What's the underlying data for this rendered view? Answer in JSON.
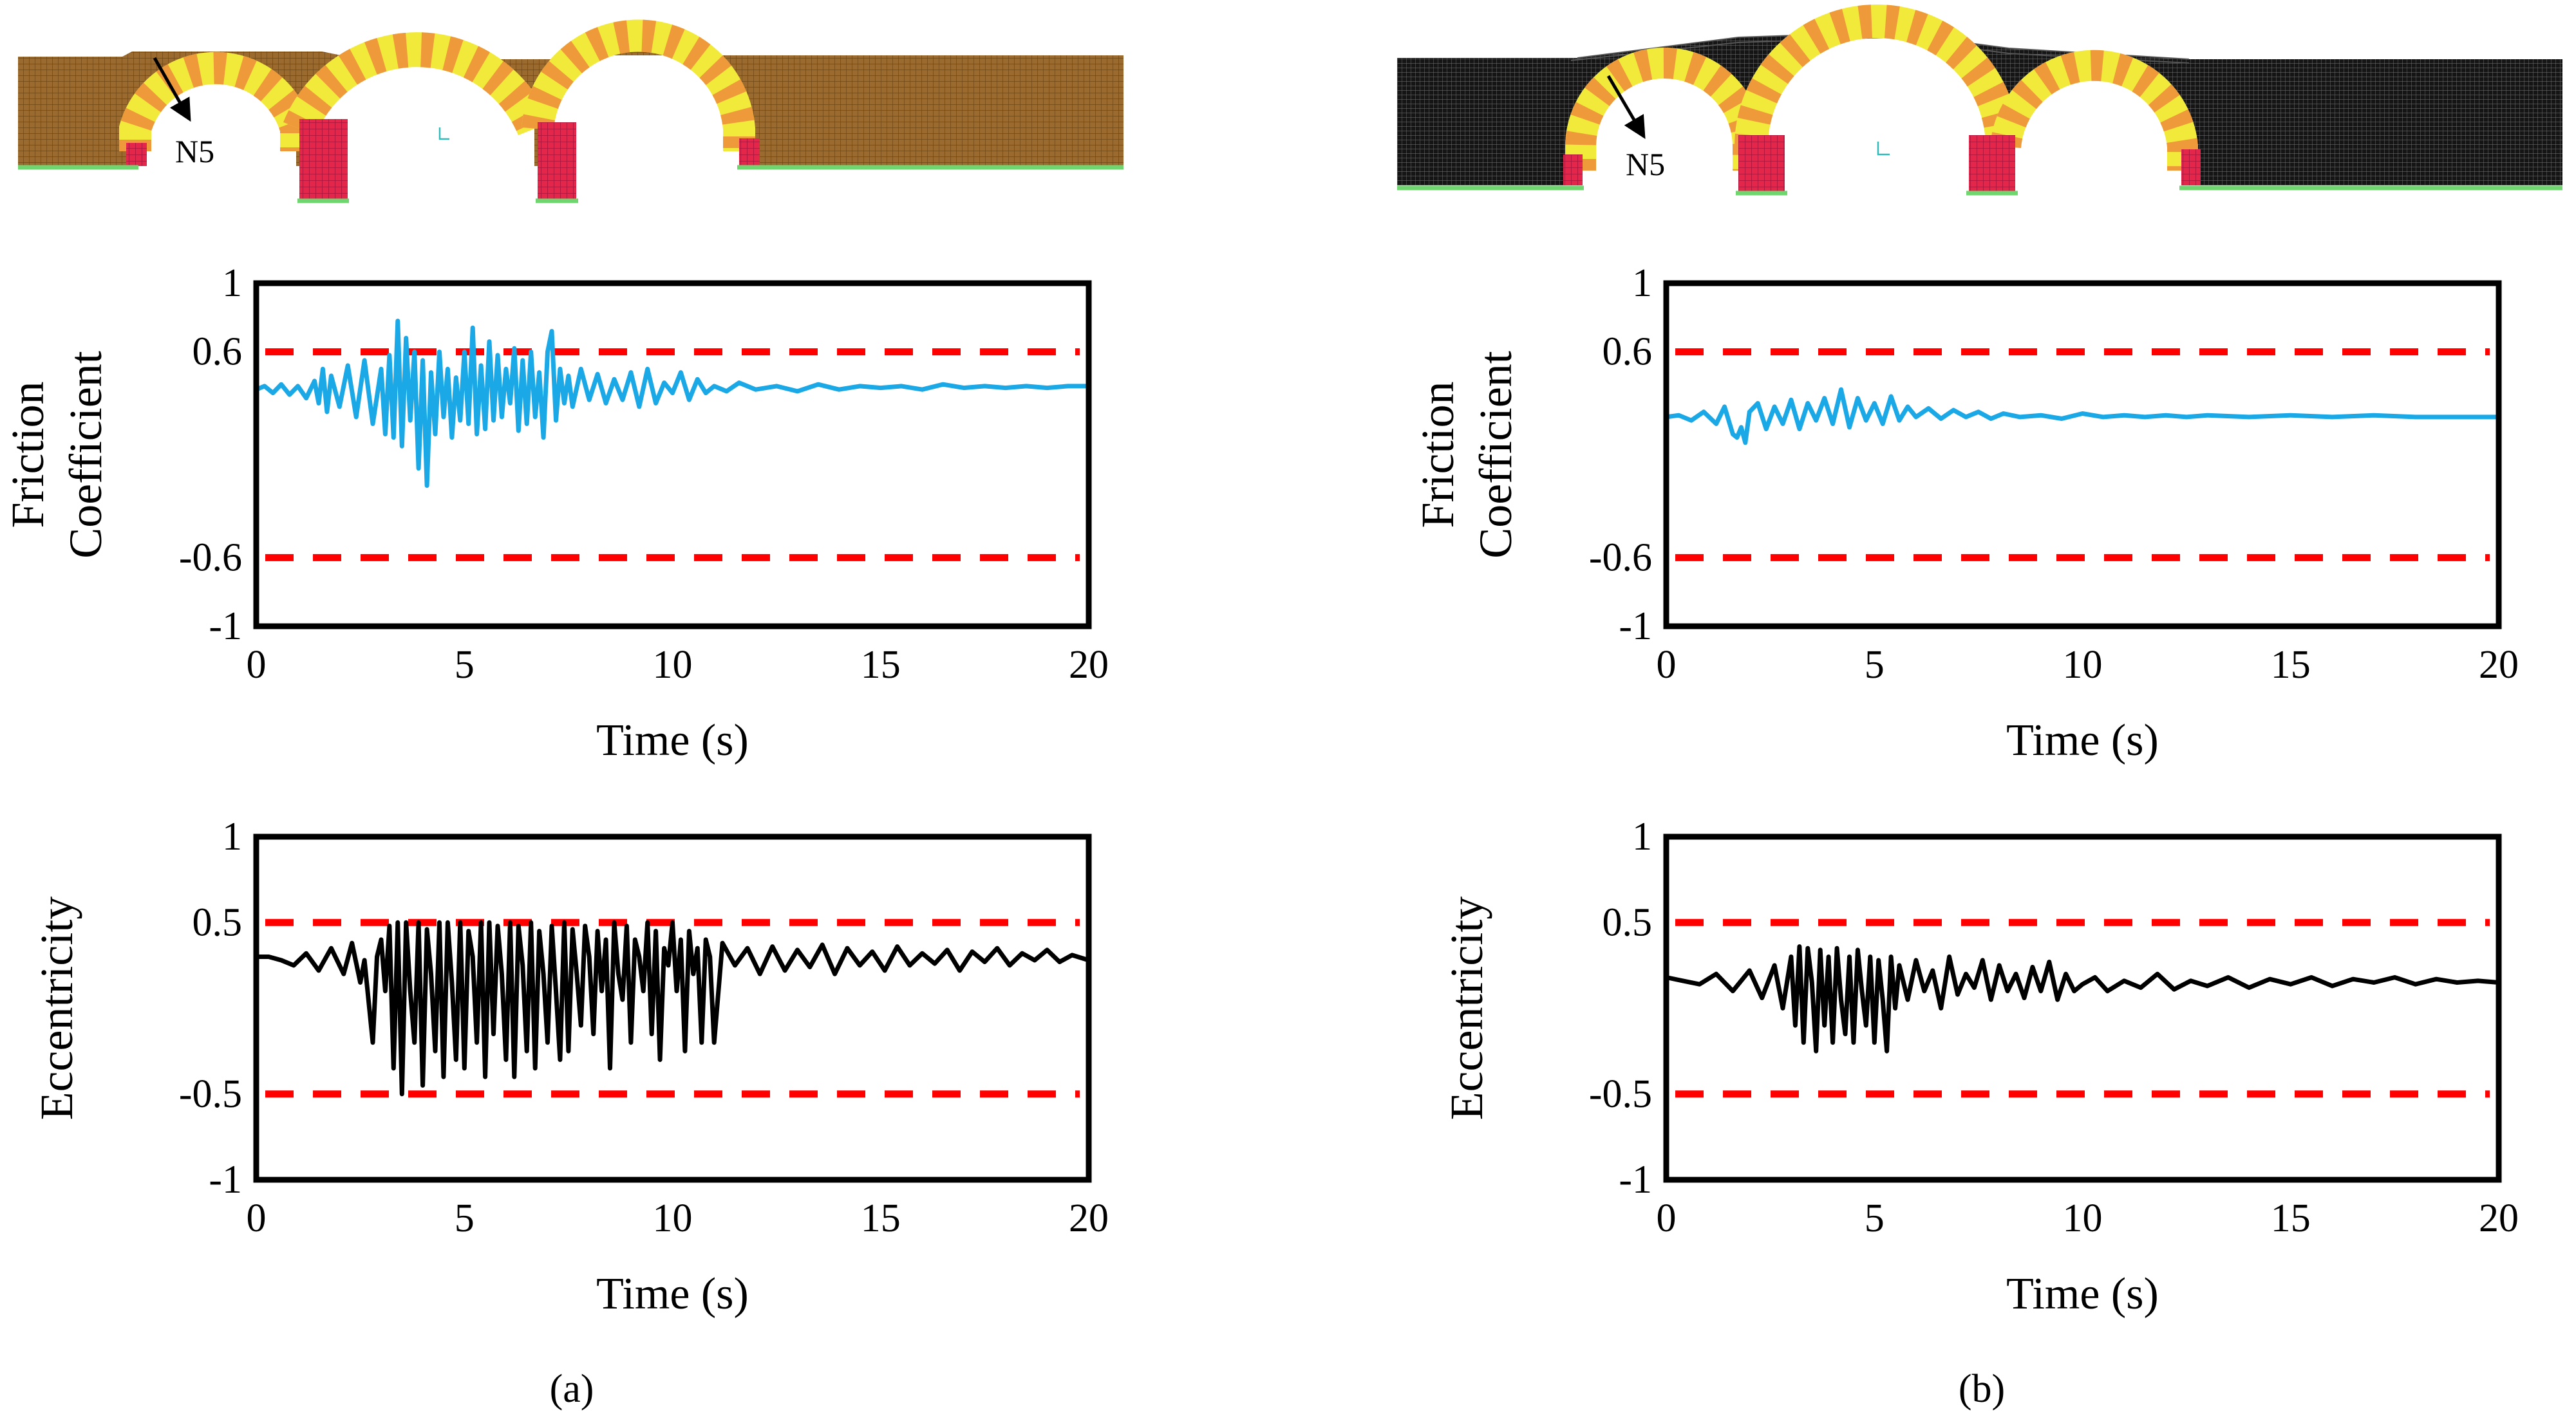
{
  "panel_labels": [
    "(a)",
    "(b)"
  ],
  "bridge_models": [
    {
      "node_label": "N5",
      "mesh_style": "masonry-brown",
      "fill_color": "#9b6a2e"
    },
    {
      "node_label": "N5",
      "mesh_style": "wireframe-black",
      "fill_color": "#161616"
    }
  ],
  "colors": {
    "friction_series": "#1aa8e6",
    "eccentricity_series": "#000000",
    "limit_lines": "#ff0000",
    "voussoir_yellow": "#f2ea3a",
    "voussoir_orange": "#ef9a3a",
    "pier_red": "#e4264a",
    "support_green": "#6fd66f"
  },
  "chart_data": [
    {
      "id": "friction-a",
      "panel": "a",
      "type": "line",
      "title": "",
      "xlabel": "Time (s)",
      "ylabel": [
        "Friction",
        "Coefficient"
      ],
      "xlim": [
        0,
        20
      ],
      "ylim": [
        -1,
        1
      ],
      "xticks": [
        "0",
        "5",
        "10",
        "15",
        "20"
      ],
      "yticks": [
        {
          "value": 1,
          "label": "1"
        },
        {
          "value": 0.6,
          "label": "0.6"
        },
        {
          "value": -0.6,
          "label": "-0.6"
        },
        {
          "value": -1,
          "label": "-1"
        }
      ],
      "limit_lines": [
        0.6,
        -0.6
      ],
      "series": [
        {
          "name": "Friction coefficient",
          "color": "#1aa8e6",
          "x": [
            0,
            0.2,
            0.4,
            0.6,
            0.8,
            1.0,
            1.2,
            1.4,
            1.5,
            1.6,
            1.7,
            1.8,
            2.0,
            2.2,
            2.4,
            2.6,
            2.8,
            3.0,
            3.1,
            3.2,
            3.3,
            3.4,
            3.5,
            3.6,
            3.7,
            3.8,
            3.9,
            4.0,
            4.1,
            4.2,
            4.3,
            4.4,
            4.5,
            4.6,
            4.7,
            4.8,
            4.9,
            5.0,
            5.1,
            5.2,
            5.3,
            5.4,
            5.5,
            5.6,
            5.7,
            5.8,
            5.9,
            6.0,
            6.1,
            6.2,
            6.3,
            6.4,
            6.5,
            6.6,
            6.7,
            6.8,
            6.9,
            7.0,
            7.1,
            7.2,
            7.3,
            7.4,
            7.5,
            7.6,
            7.8,
            8.0,
            8.2,
            8.4,
            8.6,
            8.8,
            9.0,
            9.2,
            9.4,
            9.6,
            9.8,
            10.0,
            10.2,
            10.4,
            10.6,
            10.8,
            11.0,
            11.3,
            11.6,
            12.0,
            12.5,
            13.0,
            13.5,
            14.0,
            14.5,
            15.0,
            15.5,
            16.0,
            16.5,
            17.0,
            17.5,
            18.0,
            18.5,
            19.0,
            19.5,
            20.0
          ],
          "y": [
            0.38,
            0.4,
            0.36,
            0.41,
            0.35,
            0.4,
            0.33,
            0.43,
            0.3,
            0.5,
            0.25,
            0.46,
            0.28,
            0.52,
            0.22,
            0.55,
            0.18,
            0.5,
            0.12,
            0.58,
            0.1,
            0.78,
            0.05,
            0.68,
            0.2,
            0.6,
            -0.08,
            0.55,
            -0.18,
            0.48,
            0.12,
            0.6,
            0.22,
            0.5,
            0.1,
            0.45,
            0.2,
            0.6,
            0.18,
            0.74,
            0.12,
            0.52,
            0.15,
            0.66,
            0.2,
            0.58,
            0.22,
            0.5,
            0.3,
            0.62,
            0.14,
            0.55,
            0.18,
            0.6,
            0.22,
            0.48,
            0.1,
            0.6,
            0.72,
            0.2,
            0.5,
            0.3,
            0.46,
            0.28,
            0.5,
            0.32,
            0.47,
            0.3,
            0.44,
            0.32,
            0.48,
            0.28,
            0.5,
            0.3,
            0.42,
            0.36,
            0.48,
            0.32,
            0.44,
            0.36,
            0.4,
            0.37,
            0.42,
            0.38,
            0.4,
            0.37,
            0.41,
            0.38,
            0.4,
            0.39,
            0.4,
            0.38,
            0.41,
            0.39,
            0.4,
            0.39,
            0.4,
            0.39,
            0.4,
            0.4
          ]
        }
      ]
    },
    {
      "id": "eccentricity-a",
      "panel": "a",
      "type": "line",
      "title": "",
      "xlabel": "Time (s)",
      "ylabel": [
        "Eccentricity"
      ],
      "xlim": [
        0,
        20
      ],
      "ylim": [
        -1,
        1
      ],
      "xticks": [
        "0",
        "5",
        "10",
        "15",
        "20"
      ],
      "yticks": [
        {
          "value": 1,
          "label": "1"
        },
        {
          "value": 0.5,
          "label": "0.5"
        },
        {
          "value": -0.5,
          "label": "-0.5"
        },
        {
          "value": -1,
          "label": "-1"
        }
      ],
      "limit_lines": [
        0.5,
        -0.5
      ],
      "series": [
        {
          "name": "Eccentricity",
          "color": "#000000",
          "x": [
            0,
            0.3,
            0.6,
            0.9,
            1.2,
            1.5,
            1.8,
            2.1,
            2.3,
            2.5,
            2.6,
            2.8,
            2.9,
            3.0,
            3.1,
            3.2,
            3.3,
            3.4,
            3.5,
            3.6,
            3.7,
            3.8,
            3.9,
            4.0,
            4.1,
            4.2,
            4.3,
            4.4,
            4.5,
            4.6,
            4.7,
            4.8,
            4.9,
            5.0,
            5.1,
            5.2,
            5.3,
            5.4,
            5.5,
            5.6,
            5.7,
            5.8,
            5.9,
            6.0,
            6.1,
            6.2,
            6.3,
            6.4,
            6.5,
            6.6,
            6.7,
            6.8,
            6.9,
            7.0,
            7.1,
            7.2,
            7.3,
            7.4,
            7.5,
            7.6,
            7.7,
            7.8,
            7.9,
            8.0,
            8.1,
            8.2,
            8.3,
            8.4,
            8.5,
            8.6,
            8.7,
            8.8,
            8.9,
            9.0,
            9.1,
            9.2,
            9.3,
            9.4,
            9.5,
            9.6,
            9.7,
            9.8,
            9.9,
            10.0,
            10.1,
            10.2,
            10.3,
            10.4,
            10.5,
            10.6,
            10.7,
            10.8,
            10.9,
            11.0,
            11.2,
            11.5,
            11.8,
            12.1,
            12.4,
            12.7,
            13.0,
            13.3,
            13.6,
            13.9,
            14.2,
            14.5,
            14.8,
            15.1,
            15.4,
            15.7,
            16.0,
            16.3,
            16.6,
            16.9,
            17.2,
            17.5,
            17.8,
            18.1,
            18.4,
            18.7,
            19.0,
            19.3,
            19.6,
            20.0
          ],
          "y": [
            0.3,
            0.3,
            0.28,
            0.25,
            0.32,
            0.22,
            0.35,
            0.2,
            0.38,
            0.15,
            0.28,
            -0.2,
            0.3,
            0.4,
            0.1,
            0.48,
            -0.35,
            0.5,
            -0.5,
            0.5,
            0.1,
            -0.2,
            0.5,
            -0.45,
            0.46,
            0.2,
            -0.25,
            0.5,
            -0.4,
            0.5,
            0.15,
            -0.3,
            0.5,
            -0.35,
            0.45,
            0.3,
            -0.2,
            0.5,
            -0.4,
            0.5,
            -0.15,
            0.48,
            0.2,
            -0.3,
            0.5,
            -0.4,
            0.48,
            0.25,
            -0.25,
            0.5,
            -0.35,
            0.45,
            0.2,
            -0.2,
            0.48,
            0.1,
            -0.3,
            0.5,
            -0.25,
            0.46,
            0.2,
            -0.1,
            0.48,
            0.3,
            -0.15,
            0.45,
            0.1,
            0.4,
            -0.35,
            0.5,
            0.2,
            0.05,
            0.48,
            -0.2,
            0.4,
            0.3,
            0.1,
            0.5,
            -0.15,
            0.45,
            -0.3,
            0.35,
            0.25,
            0.5,
            0.1,
            0.4,
            -0.25,
            0.45,
            0.2,
            0.35,
            -0.2,
            0.4,
            0.3,
            -0.2,
            0.38,
            0.25,
            0.35,
            0.2,
            0.36,
            0.22,
            0.34,
            0.24,
            0.37,
            0.2,
            0.35,
            0.25,
            0.33,
            0.22,
            0.36,
            0.25,
            0.32,
            0.26,
            0.34,
            0.22,
            0.33,
            0.27,
            0.35,
            0.25,
            0.32,
            0.28,
            0.34,
            0.27,
            0.31,
            0.28
          ]
        }
      ]
    },
    {
      "id": "friction-b",
      "panel": "b",
      "type": "line",
      "title": "",
      "xlabel": "Time (s)",
      "ylabel": [
        "Friction",
        "Coefficient"
      ],
      "xlim": [
        0,
        20
      ],
      "ylim": [
        -1,
        1
      ],
      "xticks": [
        "0",
        "5",
        "10",
        "15",
        "20"
      ],
      "yticks": [
        {
          "value": 1,
          "label": "1"
        },
        {
          "value": 0.6,
          "label": "0.6"
        },
        {
          "value": -0.6,
          "label": "-0.6"
        },
        {
          "value": -1,
          "label": "-1"
        }
      ],
      "limit_lines": [
        0.6,
        -0.6
      ],
      "series": [
        {
          "name": "Friction coefficient",
          "color": "#1aa8e6",
          "x": [
            0,
            0.3,
            0.6,
            0.9,
            1.2,
            1.4,
            1.6,
            1.7,
            1.8,
            1.9,
            2.0,
            2.2,
            2.4,
            2.6,
            2.8,
            3.0,
            3.2,
            3.4,
            3.6,
            3.8,
            4.0,
            4.2,
            4.4,
            4.6,
            4.8,
            5.0,
            5.2,
            5.4,
            5.6,
            5.8,
            6.0,
            6.3,
            6.6,
            6.9,
            7.2,
            7.5,
            7.8,
            8.1,
            8.5,
            9.0,
            9.5,
            10.0,
            10.5,
            11.0,
            11.5,
            12.0,
            12.5,
            13.0,
            14.0,
            15.0,
            16.0,
            17.0,
            18.0,
            19.0,
            20.0
          ],
          "y": [
            0.22,
            0.23,
            0.2,
            0.25,
            0.18,
            0.28,
            0.12,
            0.1,
            0.16,
            0.07,
            0.25,
            0.3,
            0.15,
            0.28,
            0.18,
            0.32,
            0.15,
            0.3,
            0.2,
            0.33,
            0.18,
            0.38,
            0.16,
            0.33,
            0.2,
            0.3,
            0.18,
            0.34,
            0.2,
            0.28,
            0.22,
            0.27,
            0.21,
            0.26,
            0.22,
            0.25,
            0.21,
            0.24,
            0.22,
            0.23,
            0.21,
            0.24,
            0.22,
            0.23,
            0.22,
            0.23,
            0.22,
            0.23,
            0.22,
            0.23,
            0.22,
            0.23,
            0.22,
            0.22,
            0.22
          ]
        }
      ]
    },
    {
      "id": "eccentricity-b",
      "panel": "b",
      "type": "line",
      "title": "",
      "xlabel": "Time (s)",
      "ylabel": [
        "Eccentricity"
      ],
      "xlim": [
        0,
        20
      ],
      "ylim": [
        -1,
        1
      ],
      "xticks": [
        "0",
        "5",
        "10",
        "15",
        "20"
      ],
      "yticks": [
        {
          "value": 1,
          "label": "1"
        },
        {
          "value": 0.5,
          "label": "0.5"
        },
        {
          "value": -0.5,
          "label": "-0.5"
        },
        {
          "value": -1,
          "label": "-1"
        }
      ],
      "limit_lines": [
        0.5,
        -0.5
      ],
      "series": [
        {
          "name": "Eccentricity",
          "color": "#000000",
          "x": [
            0,
            0.4,
            0.8,
            1.2,
            1.6,
            2.0,
            2.3,
            2.6,
            2.8,
            3.0,
            3.1,
            3.2,
            3.3,
            3.4,
            3.5,
            3.6,
            3.7,
            3.8,
            3.9,
            4.0,
            4.1,
            4.2,
            4.3,
            4.4,
            4.5,
            4.6,
            4.7,
            4.8,
            4.9,
            5.0,
            5.1,
            5.2,
            5.3,
            5.4,
            5.5,
            5.6,
            5.8,
            6.0,
            6.2,
            6.4,
            6.6,
            6.8,
            7.0,
            7.2,
            7.4,
            7.6,
            7.8,
            8.0,
            8.2,
            8.4,
            8.6,
            8.8,
            9.0,
            9.2,
            9.4,
            9.6,
            9.8,
            10.0,
            10.3,
            10.6,
            11.0,
            11.4,
            11.8,
            12.2,
            12.6,
            13.0,
            13.5,
            14.0,
            14.5,
            15.0,
            15.5,
            16.0,
            16.5,
            17.0,
            17.5,
            18.0,
            18.5,
            19.0,
            19.5,
            20.0
          ],
          "y": [
            0.18,
            0.16,
            0.14,
            0.2,
            0.1,
            0.22,
            0.06,
            0.25,
            0.0,
            0.3,
            -0.1,
            0.36,
            -0.2,
            0.35,
            0.15,
            -0.25,
            0.34,
            -0.1,
            0.3,
            -0.2,
            0.35,
            0.05,
            -0.15,
            0.3,
            -0.2,
            0.34,
            0.1,
            -0.1,
            0.3,
            -0.2,
            0.28,
            0.05,
            -0.25,
            0.3,
            0.0,
            0.25,
            0.05,
            0.28,
            0.1,
            0.22,
            0.0,
            0.3,
            0.08,
            0.2,
            0.12,
            0.28,
            0.05,
            0.25,
            0.1,
            0.2,
            0.06,
            0.24,
            0.1,
            0.27,
            0.05,
            0.2,
            0.1,
            0.14,
            0.18,
            0.1,
            0.16,
            0.12,
            0.2,
            0.11,
            0.16,
            0.13,
            0.18,
            0.12,
            0.17,
            0.14,
            0.18,
            0.13,
            0.17,
            0.15,
            0.18,
            0.14,
            0.17,
            0.15,
            0.16,
            0.15
          ]
        }
      ]
    }
  ]
}
